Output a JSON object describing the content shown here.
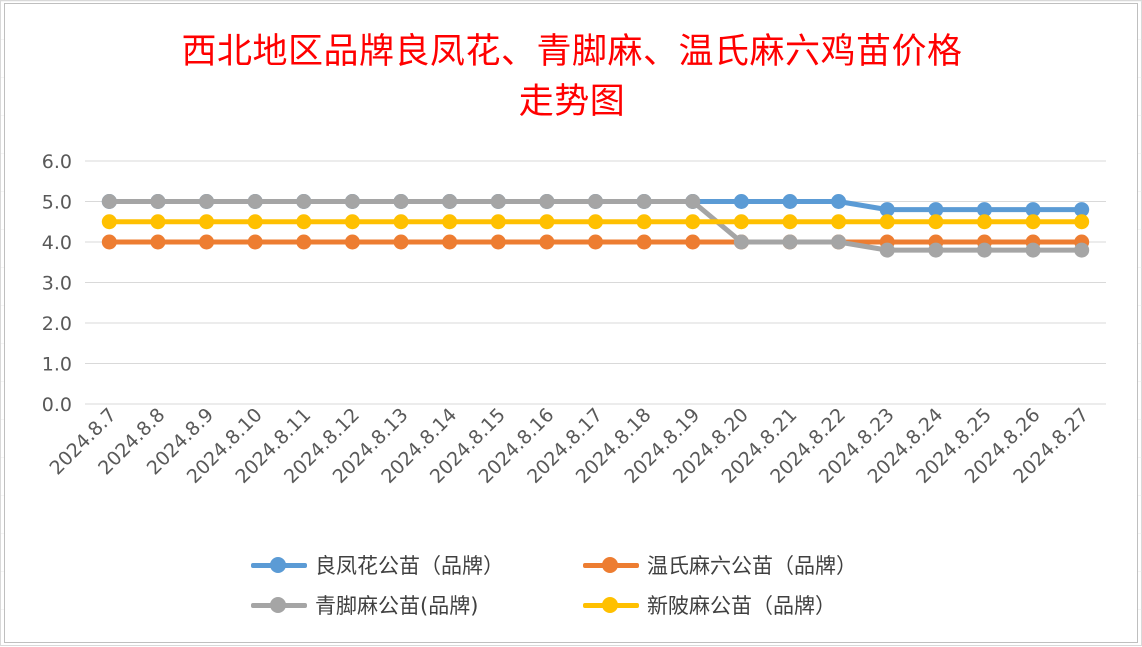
{
  "title_lines": [
    "西北地区品牌良凤花、青脚麻、温氏麻六鸡苗价格",
    "走势图"
  ],
  "chart_data": {
    "type": "line",
    "title": "西北地区品牌良凤花、青脚麻、温氏麻六鸡苗价格走势图",
    "xlabel": "",
    "ylabel": "",
    "ylim": [
      0,
      6
    ],
    "yticks": [
      "0.0",
      "1.0",
      "2.0",
      "3.0",
      "4.0",
      "5.0",
      "6.0"
    ],
    "grid": true,
    "legend_position": "bottom",
    "categories": [
      "2024.8.7",
      "2024.8.8",
      "2024.8.9",
      "2024.8.10",
      "2024.8.11",
      "2024.8.12",
      "2024.8.13",
      "2024.8.14",
      "2024.8.15",
      "2024.8.16",
      "2024.8.17",
      "2024.8.18",
      "2024.8.19",
      "2024.8.20",
      "2024.8.21",
      "2024.8.22",
      "2024.8.23",
      "2024.8.24",
      "2024.8.25",
      "2024.8.26",
      "2024.8.27"
    ],
    "series": [
      {
        "name": "良凤花公苗（品牌）",
        "color": "#5b9bd5",
        "values": [
          5.0,
          5.0,
          5.0,
          5.0,
          5.0,
          5.0,
          5.0,
          5.0,
          5.0,
          5.0,
          5.0,
          5.0,
          5.0,
          5.0,
          5.0,
          5.0,
          4.8,
          4.8,
          4.8,
          4.8,
          4.8
        ]
      },
      {
        "name": "温氏麻六公苗（品牌）",
        "color": "#ed7d31",
        "values": [
          4.0,
          4.0,
          4.0,
          4.0,
          4.0,
          4.0,
          4.0,
          4.0,
          4.0,
          4.0,
          4.0,
          4.0,
          4.0,
          4.0,
          4.0,
          4.0,
          4.0,
          4.0,
          4.0,
          4.0,
          4.0
        ]
      },
      {
        "name": "青脚麻公苗(品牌)",
        "color": "#a5a5a5",
        "values": [
          5.0,
          5.0,
          5.0,
          5.0,
          5.0,
          5.0,
          5.0,
          5.0,
          5.0,
          5.0,
          5.0,
          5.0,
          5.0,
          4.0,
          4.0,
          4.0,
          3.8,
          3.8,
          3.8,
          3.8,
          3.8
        ]
      },
      {
        "name": "新陂麻公苗（品牌）",
        "color": "#ffc000",
        "values": [
          4.5,
          4.5,
          4.5,
          4.5,
          4.5,
          4.5,
          4.5,
          4.5,
          4.5,
          4.5,
          4.5,
          4.5,
          4.5,
          4.5,
          4.5,
          4.5,
          4.5,
          4.5,
          4.5,
          4.5,
          4.5
        ]
      }
    ],
    "draw_order": [
      0,
      1,
      2,
      3
    ]
  }
}
